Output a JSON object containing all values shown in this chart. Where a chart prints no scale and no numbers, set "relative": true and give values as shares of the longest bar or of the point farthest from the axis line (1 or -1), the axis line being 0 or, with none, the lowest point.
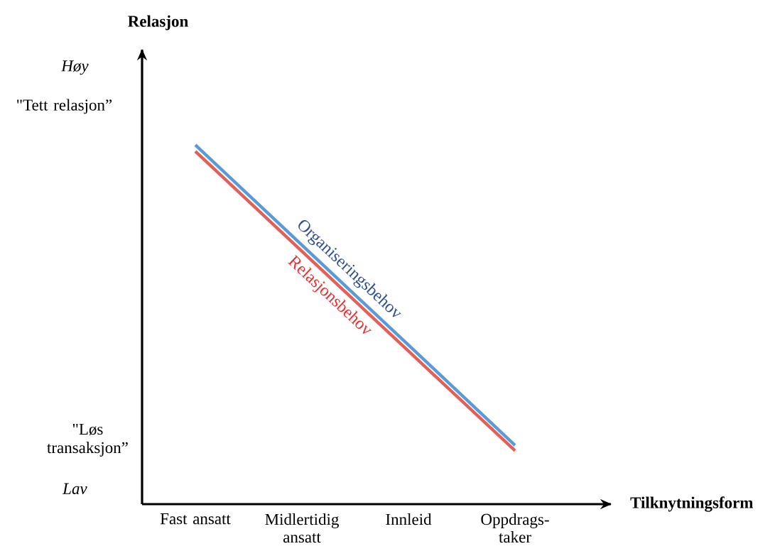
{
  "chart_data": {
    "type": "line",
    "relative": true,
    "xlabel": "Tilknytningsform",
    "categories": [
      "Fast ansatt",
      "Midlertidig ansatt",
      "Innleid",
      "Oppdrags- taker"
    ],
    "series": [
      {
        "name": "Organiseringsbehov",
        "color": "#5b9bd5",
        "values": [
          1,
          0.721,
          0.443,
          0.164
        ]
      },
      {
        "name": "Relasjonsbehov",
        "color": "#e0615a",
        "values": [
          0.982,
          0.704,
          0.426,
          0.149
        ]
      }
    ],
    "annotations": [
      "Relasjon",
      "Høy",
      "\"Tett relasjon”",
      "\"Løs transaksjon”",
      "Lav"
    ],
    "marker": "none",
    "line_style": "solid",
    "grid": false
  }
}
